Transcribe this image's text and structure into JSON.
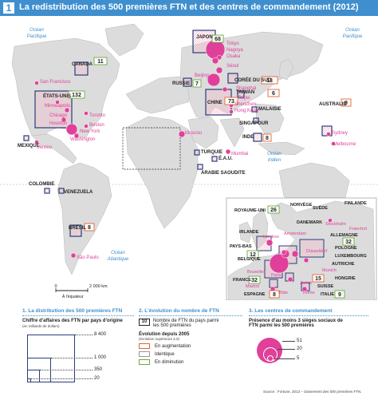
{
  "title": {
    "number": "1",
    "text": "La redistribution des 500 premières FTN et des centres de commandement (2012)"
  },
  "oceans": {
    "ocean1": "Océan",
    "pacifique1": "Pacifique",
    "ocean2": "Océan",
    "pacifique2": "Pacifique",
    "ocean3": "Océan",
    "atlantique": "Atlantique",
    "ocean4": "Océan",
    "indien": "Indien"
  },
  "countries": {
    "japon": "JAPON",
    "coree": "CORÉE DU SUD",
    "taiwan": "TAIWAN",
    "chine": "CHINE",
    "russie": "RUSSIE",
    "canada": "CANADA",
    "etats_unis": "ÉTATS-UNIS",
    "mexique": "MEXIQUE",
    "bresil": "BRÉSIL",
    "colombie": "COLOMBIE",
    "venezuela": "VENEZUELA",
    "inde": "INDE",
    "malaisie": "MALAISIE",
    "singapour": "SINGAPOUR",
    "turquie": "TURQUIE",
    "eau": "É.A.U.",
    "arabie": "ARABIE SAOUDITE",
    "australie": "AUSTRALIE"
  },
  "counts": {
    "japon": "68",
    "coree": "13",
    "taiwan": "6",
    "chine": "73",
    "russie": "7",
    "canada": "11",
    "etats_unis": "132",
    "bresil": "8",
    "inde": "8",
    "australie": "9"
  },
  "cities": {
    "tokyo": "Tokyo",
    "nagoya": "Nagoya",
    "osaka": "Osaka",
    "seoul": "Séoul",
    "beijing": "Beijing",
    "shanghai": "Shanghai",
    "taipei": "Taipei",
    "shenzhen": "Shenzhen",
    "hong_kong": "Hong Kong",
    "san_francisco": "San Francisco",
    "minneapolis": "Minneapolis",
    "chicago": "Chicago",
    "houston": "Houston",
    "toronto": "Toronto",
    "boston": "Boston",
    "new_york": "New York",
    "washington": "Washington",
    "mexico": "Mexico",
    "moscou": "Moscou",
    "mumbai": "Mumbai",
    "sydney": "Sydney",
    "melbourne": "Melbourne",
    "sao_paulo": "São Paulo"
  },
  "europe": {
    "royaume_uni": "ROYAUME-UNI",
    "royaume_uni_count": "26",
    "norvege": "NORVÈGE",
    "suede": "SUÈDE",
    "finlande": "FINLANDE",
    "danemark": "DANEMARK",
    "irlande": "IRLANDE",
    "pays_bas": "PAYS-BAS",
    "pays_bas_count": "12",
    "allemagne": "ALLEMAGNE",
    "allemagne_count": "32",
    "pologne": "POLOGNE",
    "luxembourg": "LUXEMBOURG",
    "belgique": "BELGIQUE",
    "france": "FRANCE",
    "france_count": "32",
    "suisse": "SUISSE",
    "suisse_count": "15",
    "autriche": "AUTRICHE",
    "hongrie": "HONGRIE",
    "espagne": "ESPAGNE",
    "espagne_count": "8",
    "italie": "ITALIE",
    "italie_count": "9",
    "stockholm": "Stockholm",
    "londres": "Londres",
    "amsterdam": "Amsterdam",
    "francfort": "Francfort",
    "dusseldorf": "Düsseldorf",
    "bruxelles": "Bruxelles",
    "paris": "Paris",
    "munich": "Munich",
    "zurich": "Zurich",
    "bale": "Bâle",
    "rome": "Rome",
    "madrid": "Madrid"
  },
  "scale": {
    "zero": "0",
    "dist": "2 000 km",
    "equator": "À l'équateur"
  },
  "legend1": {
    "heading": "1. La distribution des 500 premières FTN",
    "subtitle": "Chiffre d'affaires des FTN par pays d'origine",
    "unit": "(en milliards de dollars)",
    "v1": "8 400",
    "v2": "1 000",
    "v3": "350",
    "v4": "20"
  },
  "legend2": {
    "heading": "2. L'évolution du nombre de FTN",
    "box_value": "10",
    "box_text": "Nombre de FTN du pays parmi les 500 premières",
    "evo_title": "Évolution depuis 2005",
    "evo_sub": "(évolution supérieure à 5)",
    "aug": "En augmentation",
    "ident": "Identique",
    "dim": "En diminution",
    "colors": {
      "aug": "#e8622e",
      "ident": "#999999",
      "dim": "#6aaa3a"
    }
  },
  "legend3": {
    "heading": "3. Les centres de commandement",
    "subtitle": "Présence d'au moins 3 sièges sociaux de FTN parmi les 500 premières",
    "v1": "51",
    "v2": "20",
    "v3": "5"
  },
  "source": "Source : Fortune, 2013 – classement des 500 premières FTN.",
  "colors": {
    "land": "#dcdcdc",
    "sea": "#ffffff",
    "accent": "#3f8fce",
    "navy": "#283d7a",
    "pink": "#e0409a"
  }
}
